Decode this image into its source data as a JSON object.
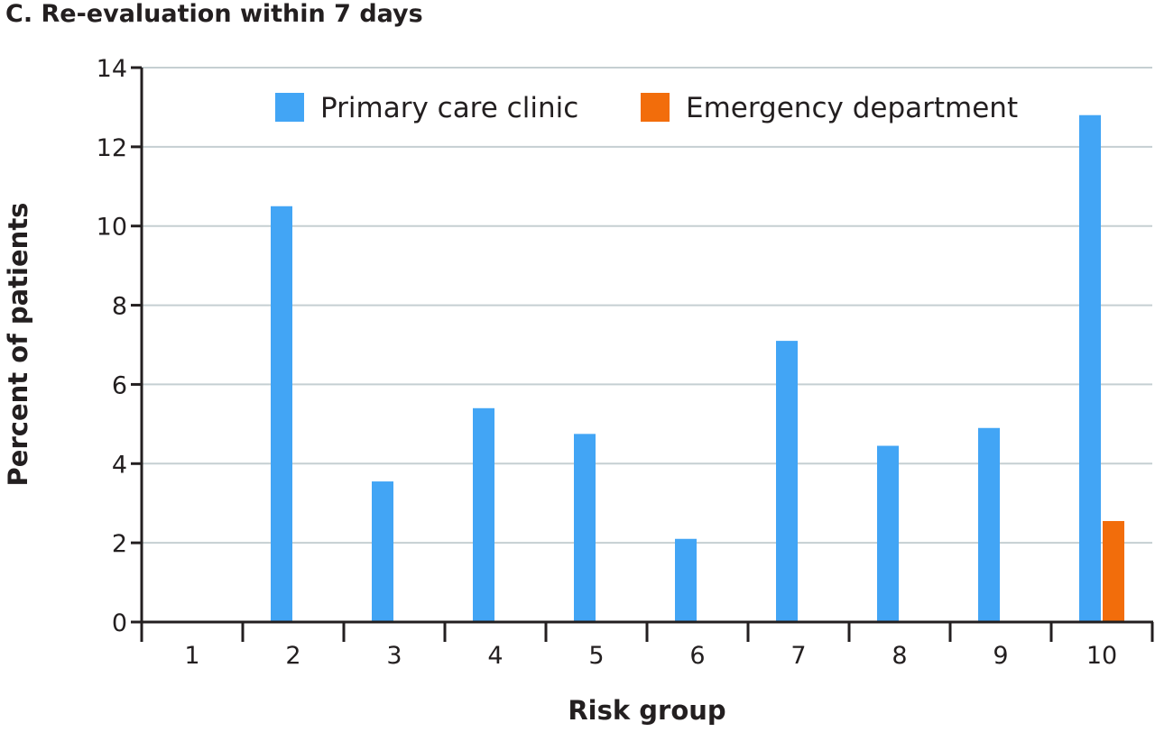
{
  "chart_data": {
    "type": "bar",
    "title": "C. Re-evaluation within 7 days",
    "xlabel": "Risk group",
    "ylabel": "Percent of patients",
    "categories": [
      "1",
      "2",
      "3",
      "4",
      "5",
      "6",
      "7",
      "8",
      "9",
      "10"
    ],
    "series": [
      {
        "name": "Primary care clinic",
        "color": "#42a5f5",
        "values": [
          0,
          10.5,
          3.55,
          5.4,
          4.75,
          2.1,
          7.1,
          4.45,
          4.9,
          12.8
        ]
      },
      {
        "name": "Emergency department",
        "color": "#f26d0b",
        "values": [
          0,
          0,
          0,
          0,
          0,
          0,
          0,
          0,
          0,
          2.55
        ]
      }
    ],
    "ylim": [
      0,
      14
    ],
    "yticks": [
      0,
      2,
      4,
      6,
      8,
      10,
      12,
      14
    ],
    "grid": true,
    "legend": "top-right",
    "gridColor": "#c5cfd2",
    "axisColor": "#231f20"
  }
}
